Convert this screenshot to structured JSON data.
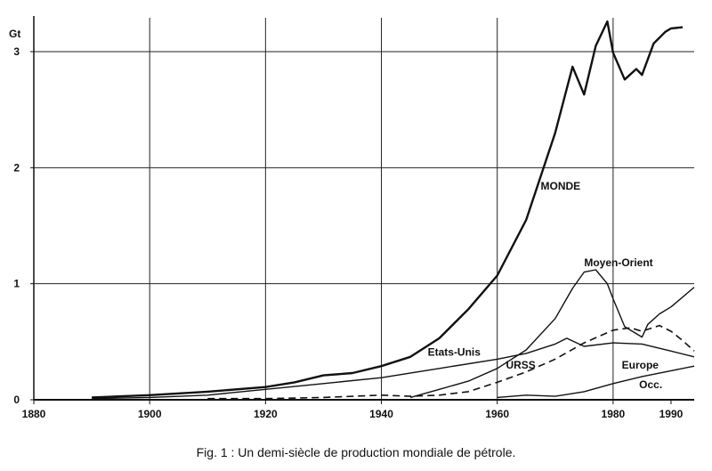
{
  "caption": "Fig. 1 : Un demi-siècle de production mondiale de pétrole.",
  "chart_data": {
    "type": "line",
    "ylabel": "Gt",
    "xlabel": "",
    "xlim": [
      1880,
      1994
    ],
    "ylim": [
      0,
      3.3
    ],
    "x_ticks": [
      1880,
      1900,
      1920,
      1940,
      1960,
      1980,
      1990
    ],
    "x_tick_labels": [
      "1880",
      "1900",
      "1920",
      "1940",
      "1960",
      "1980",
      "1990"
    ],
    "y_ticks": [
      0,
      1,
      2,
      3
    ],
    "y_tick_labels": [
      "0",
      "1",
      "2",
      "3"
    ],
    "grid": true,
    "series": [
      {
        "name": "MONDE",
        "style": "solid-thick",
        "x": [
          1890,
          1900,
          1910,
          1920,
          1925,
          1930,
          1935,
          1940,
          1945,
          1950,
          1955,
          1960,
          1965,
          1970,
          1973,
          1975,
          1977,
          1979,
          1980,
          1982,
          1984,
          1985,
          1987,
          1989,
          1990,
          1992
        ],
        "y": [
          0.02,
          0.04,
          0.07,
          0.11,
          0.15,
          0.21,
          0.23,
          0.29,
          0.37,
          0.53,
          0.78,
          1.07,
          1.55,
          2.3,
          2.87,
          2.63,
          3.05,
          3.26,
          2.99,
          2.76,
          2.85,
          2.8,
          3.07,
          3.17,
          3.2,
          3.21
        ]
      },
      {
        "name": "Etats-Unis",
        "style": "solid",
        "x": [
          1890,
          1900,
          1910,
          1920,
          1930,
          1940,
          1950,
          1960,
          1965,
          1970,
          1972,
          1975,
          1980,
          1985,
          1990,
          1994
        ],
        "y": [
          0.01,
          0.02,
          0.04,
          0.09,
          0.14,
          0.19,
          0.27,
          0.35,
          0.4,
          0.48,
          0.53,
          0.46,
          0.49,
          0.48,
          0.42,
          0.37
        ]
      },
      {
        "name": "Moyen-Orient",
        "style": "solid",
        "x": [
          1945,
          1950,
          1955,
          1960,
          1965,
          1970,
          1973,
          1975,
          1977,
          1979,
          1980,
          1982,
          1985,
          1986,
          1988,
          1990,
          1994
        ],
        "y": [
          0.02,
          0.09,
          0.16,
          0.27,
          0.43,
          0.7,
          0.96,
          1.1,
          1.12,
          1.0,
          0.87,
          0.63,
          0.54,
          0.65,
          0.74,
          0.8,
          0.97
        ]
      },
      {
        "name": "URSS",
        "style": "dashed",
        "x": [
          1910,
          1920,
          1930,
          1940,
          1945,
          1950,
          1955,
          1960,
          1965,
          1970,
          1975,
          1980,
          1983,
          1985,
          1988,
          1990,
          1992,
          1994
        ],
        "y": [
          0.01,
          0.01,
          0.02,
          0.04,
          0.03,
          0.04,
          0.07,
          0.15,
          0.24,
          0.35,
          0.49,
          0.6,
          0.62,
          0.59,
          0.64,
          0.59,
          0.51,
          0.42
        ]
      },
      {
        "name": "Europe Occ.",
        "style": "solid",
        "x": [
          1960,
          1965,
          1970,
          1975,
          1980,
          1985,
          1990,
          1994
        ],
        "y": [
          0.02,
          0.04,
          0.03,
          0.07,
          0.14,
          0.2,
          0.25,
          0.29
        ]
      }
    ],
    "annotations": [
      {
        "text": "MONDE",
        "x": 1967.5,
        "y": 1.81
      },
      {
        "text": "Moyen-Orient",
        "x": 1975,
        "y": 1.15
      },
      {
        "text": "Etats-Unis",
        "x": 1948,
        "y": 0.38
      },
      {
        "text": "URSS",
        "x": 1961.5,
        "y": 0.27
      },
      {
        "text": "Europe",
        "x": 1981.5,
        "y": 0.27
      },
      {
        "text": "Occ.",
        "x": 1984.5,
        "y": 0.1
      }
    ]
  }
}
